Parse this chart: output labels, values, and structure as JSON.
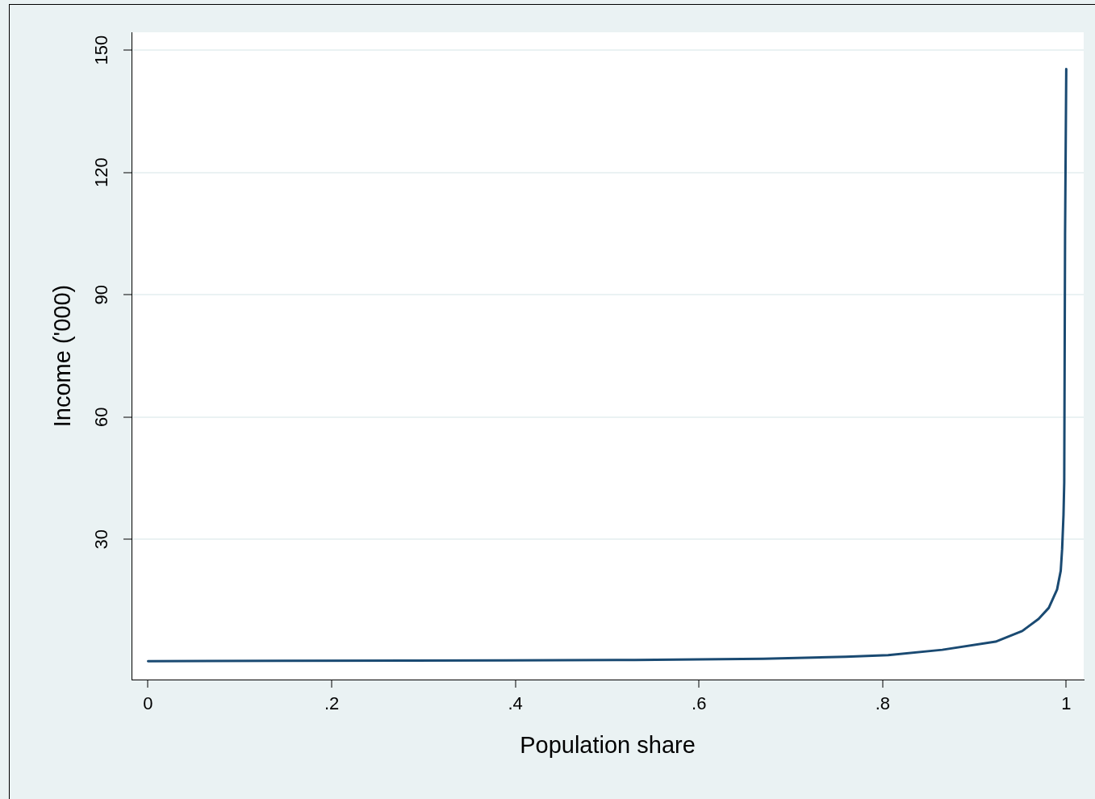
{
  "chart_data": {
    "type": "line",
    "xlabel": "Population share",
    "ylabel": "Income ('000)",
    "color": "#1a4a72",
    "x": [
      0,
      0.146,
      0.39,
      0.53,
      0.67,
      0.76,
      0.806,
      0.865,
      0.923,
      0.952,
      0.97,
      0.981,
      0.99,
      0.994,
      0.9955,
      0.997,
      0.9978,
      0.9987,
      1
    ],
    "values": [
      0.1,
      0.2,
      0.3,
      0.4,
      0.7,
      1.2,
      1.6,
      2.9,
      4.9,
      7.5,
      10.5,
      13.2,
      17.7,
      22.3,
      27.6,
      36,
      44,
      104.6,
      145.4
    ],
    "xlim": [
      -0.018,
      1.019
    ],
    "ylim": [
      -4.4,
      154.4
    ],
    "xticks": [
      0,
      {
        "value": 0.2,
        "label": ".2"
      },
      {
        "value": 0.4,
        "label": ".4"
      },
      {
        "value": 0.6,
        "label": ".6"
      },
      {
        "value": 0.8,
        "label": ".8"
      },
      1
    ],
    "yticks": [
      30,
      60,
      90,
      120,
      150
    ],
    "grid": "y",
    "legend": false,
    "marker": "none",
    "line_style": "solid"
  }
}
